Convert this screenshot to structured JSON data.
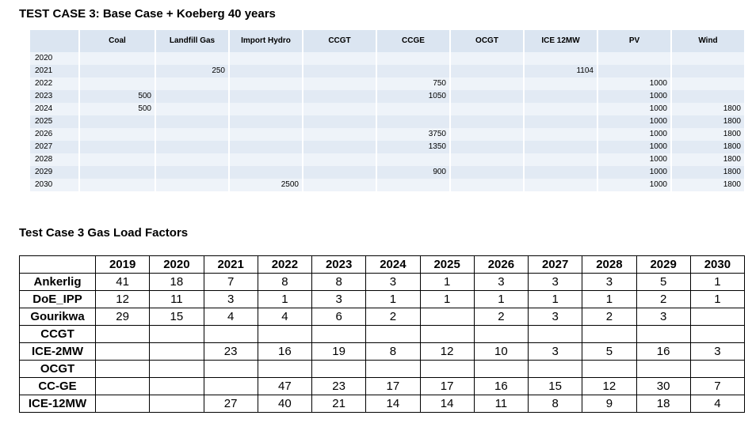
{
  "title_top": "TEST CASE 3: Base Case + Koeberg 40 years",
  "title_bottom": "Test Case 3 Gas Load Factors",
  "build_table": {
    "columns": [
      "Coal",
      "Landfill Gas",
      "Import Hydro",
      "CCGT",
      "CCGE",
      "OCGT",
      "ICE 12MW",
      "PV",
      "Wind"
    ],
    "rows": [
      {
        "year": "2020",
        "cells": [
          "",
          "",
          "",
          "",
          "",
          "",
          "",
          "",
          ""
        ]
      },
      {
        "year": "2021",
        "cells": [
          "",
          "250",
          "",
          "",
          "",
          "",
          "1104",
          "",
          ""
        ]
      },
      {
        "year": "2022",
        "cells": [
          "",
          "",
          "",
          "",
          "750",
          "",
          "",
          "1000",
          ""
        ]
      },
      {
        "year": "2023",
        "cells": [
          "500",
          "",
          "",
          "",
          "1050",
          "",
          "",
          "1000",
          ""
        ]
      },
      {
        "year": "2024",
        "cells": [
          "500",
          "",
          "",
          "",
          "",
          "",
          "",
          "1000",
          "1800"
        ]
      },
      {
        "year": "2025",
        "cells": [
          "",
          "",
          "",
          "",
          "",
          "",
          "",
          "1000",
          "1800"
        ]
      },
      {
        "year": "2026",
        "cells": [
          "",
          "",
          "",
          "",
          "3750",
          "",
          "",
          "1000",
          "1800"
        ]
      },
      {
        "year": "2027",
        "cells": [
          "",
          "",
          "",
          "",
          "1350",
          "",
          "",
          "1000",
          "1800"
        ]
      },
      {
        "year": "2028",
        "cells": [
          "",
          "",
          "",
          "",
          "",
          "",
          "",
          "1000",
          "1800"
        ]
      },
      {
        "year": "2029",
        "cells": [
          "",
          "",
          "",
          "",
          "900",
          "",
          "",
          "1000",
          "1800"
        ]
      },
      {
        "year": "2030",
        "cells": [
          "",
          "",
          "2500",
          "",
          "",
          "",
          "",
          "1000",
          "1800"
        ]
      }
    ]
  },
  "load_factor_table": {
    "years": [
      "2019",
      "2020",
      "2021",
      "2022",
      "2023",
      "2024",
      "2025",
      "2026",
      "2027",
      "2028",
      "2029",
      "2030"
    ],
    "rows": [
      {
        "label": "Ankerlig",
        "cells": [
          "41",
          "18",
          "7",
          "8",
          "8",
          "3",
          "1",
          "3",
          "3",
          "3",
          "5",
          "1"
        ]
      },
      {
        "label": "DoE_IPP",
        "cells": [
          "12",
          "11",
          "3",
          "1",
          "3",
          "1",
          "1",
          "1",
          "1",
          "1",
          "2",
          "1"
        ]
      },
      {
        "label": "Gourikwa",
        "cells": [
          "29",
          "15",
          "4",
          "4",
          "6",
          "2",
          "",
          "2",
          "3",
          "2",
          "3",
          ""
        ]
      },
      {
        "label": "CCGT",
        "cells": [
          "",
          "",
          "",
          "",
          "",
          "",
          "",
          "",
          "",
          "",
          "",
          ""
        ]
      },
      {
        "label": "ICE-2MW",
        "cells": [
          "",
          "",
          "23",
          "16",
          "19",
          "8",
          "12",
          "10",
          "3",
          "5",
          "16",
          "3"
        ]
      },
      {
        "label": "OCGT",
        "cells": [
          "",
          "",
          "",
          "",
          "",
          "",
          "",
          "",
          "",
          "",
          "",
          ""
        ]
      },
      {
        "label": "CC-GE",
        "cells": [
          "",
          "",
          "",
          "47",
          "23",
          "17",
          "17",
          "16",
          "15",
          "12",
          "30",
          "7"
        ]
      },
      {
        "label": "ICE-12MW",
        "cells": [
          "",
          "",
          "27",
          "40",
          "21",
          "14",
          "14",
          "11",
          "8",
          "9",
          "18",
          "4"
        ]
      }
    ]
  }
}
